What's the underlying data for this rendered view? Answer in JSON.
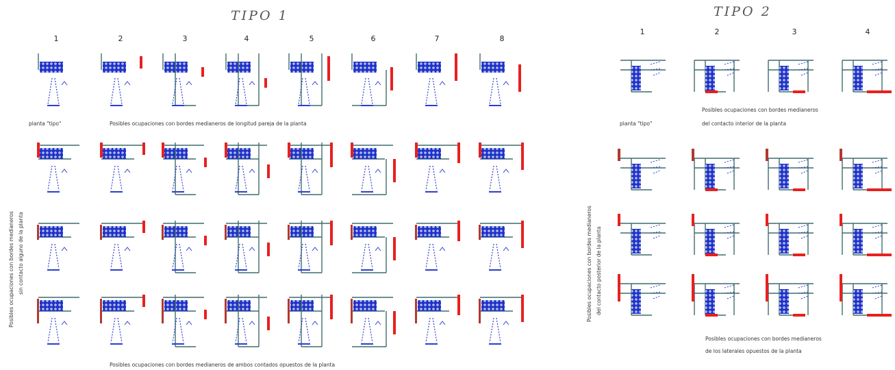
{
  "tipo1": {
    "title": "TIPO 1",
    "columns": [
      "1",
      "2",
      "3",
      "4",
      "5",
      "6",
      "7",
      "8"
    ],
    "plant_label": "planta \"tipo\"",
    "caption_row1": "Posibles ocupaciones con bordes medianeros de longitud pareja de la planta",
    "side_label_line1": "Posibles ocupaciones con bordes medianeros",
    "side_label_line2": "sin contacto alguno de la planta",
    "caption_bottom": "Posibles ocupaciones con bordes medianeros de ambos contados opuestos de la planta"
  },
  "tipo2": {
    "title": "TIPO 2",
    "columns": [
      "1",
      "2",
      "3",
      "4"
    ],
    "plant_label": "planta \"tipo\"",
    "caption_row1_line1": "Posibles ocupaciones con bordes medianeros",
    "caption_row1_line2": "del contacto interior de la planta",
    "side_label_line1": "Posibles ocupaciones con bordes medianeros",
    "side_label_line2": "del contacto posterior de la planta",
    "caption_bottom_line1": "Posibles ocupaciones con bordes medianeros",
    "caption_bottom_line2": "de los laterales opuestos de la planta"
  },
  "colors": {
    "wall": "#3f6b6b",
    "party_wall": "#e8201e",
    "party_wall_dark": "#b0392f",
    "room": "#1f33c8",
    "room_light": "#ffffff",
    "stair": "#2a3ed0"
  }
}
